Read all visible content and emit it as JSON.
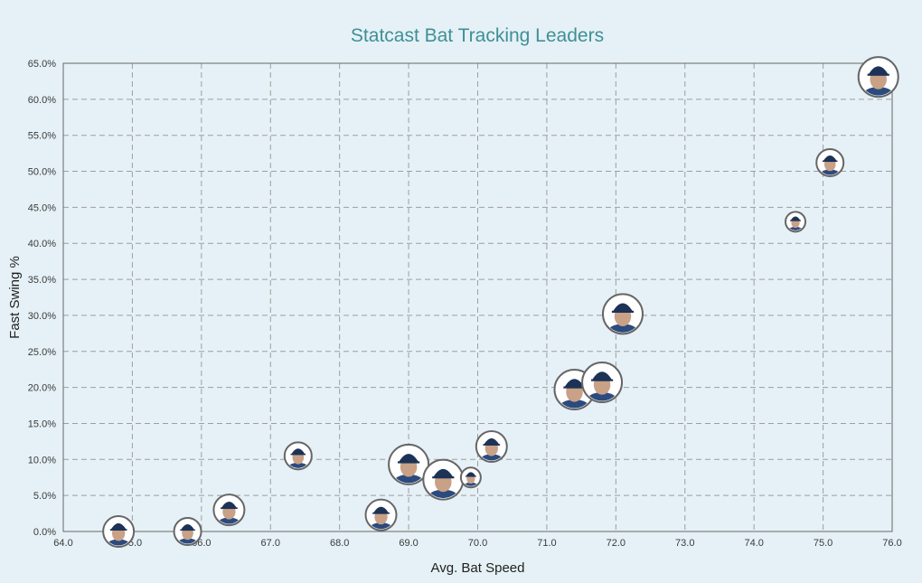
{
  "chart_data": {
    "type": "scatter",
    "title": "Statcast Bat Tracking Leaders",
    "xlabel": "Avg. Bat Speed",
    "ylabel": "Fast Swing %",
    "xlim": [
      64.0,
      76.0
    ],
    "ylim": [
      0.0,
      65.0
    ],
    "x_ticks": [
      "64.0",
      "65.0",
      "66.0",
      "67.0",
      "68.0",
      "69.0",
      "70.0",
      "71.0",
      "72.0",
      "73.0",
      "74.0",
      "75.0",
      "76.0"
    ],
    "y_ticks": [
      "0.0%",
      "5.0%",
      "10.0%",
      "15.0%",
      "20.0%",
      "25.0%",
      "30.0%",
      "35.0%",
      "40.0%",
      "45.0%",
      "50.0%",
      "55.0%",
      "60.0%",
      "65.0%"
    ],
    "grid": true,
    "marker": "player-headshot",
    "points": [
      {
        "x": 64.8,
        "y": 0.0,
        "size": "medium"
      },
      {
        "x": 65.8,
        "y": 0.0,
        "size": "small"
      },
      {
        "x": 66.4,
        "y": 3.0,
        "size": "medium"
      },
      {
        "x": 67.4,
        "y": 10.5,
        "size": "small"
      },
      {
        "x": 68.6,
        "y": 2.3,
        "size": "medium"
      },
      {
        "x": 69.0,
        "y": 9.3,
        "size": "large"
      },
      {
        "x": 69.5,
        "y": 7.2,
        "size": "large"
      },
      {
        "x": 69.9,
        "y": 7.5,
        "size": "xsmall"
      },
      {
        "x": 70.2,
        "y": 11.8,
        "size": "medium"
      },
      {
        "x": 71.4,
        "y": 19.7,
        "size": "large"
      },
      {
        "x": 71.8,
        "y": 20.7,
        "size": "large"
      },
      {
        "x": 72.1,
        "y": 30.2,
        "size": "large"
      },
      {
        "x": 74.6,
        "y": 43.0,
        "size": "xsmall"
      },
      {
        "x": 75.1,
        "y": 51.2,
        "size": "small"
      },
      {
        "x": 75.8,
        "y": 63.1,
        "size": "large"
      }
    ]
  },
  "colors": {
    "background": "#e5f1f6",
    "title": "#3f8f97",
    "cap": "#1c3256",
    "skin": "#c9a187",
    "jersey": "#2b4a7e",
    "marker_border": "#666666"
  }
}
